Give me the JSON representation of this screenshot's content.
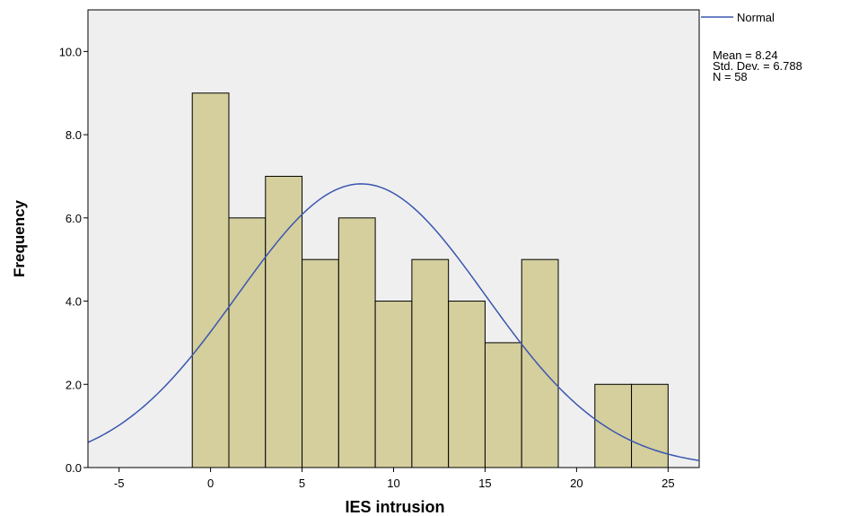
{
  "chart_data": {
    "type": "bar",
    "subtype": "histogram",
    "xlabel": "IES intrusion",
    "ylabel": "Frequency",
    "xlim": [
      -6.7,
      26.7
    ],
    "ylim": [
      0,
      11
    ],
    "x_ticks": [
      -5,
      0,
      5,
      10,
      15,
      20,
      25
    ],
    "x_tick_labels": [
      "-5",
      "0",
      "5",
      "10",
      "15",
      "20",
      "25"
    ],
    "y_ticks": [
      0,
      2,
      4,
      6,
      8,
      10
    ],
    "y_tick_labels": [
      "0.0",
      "2.0",
      "4.0",
      "6.0",
      "8.0",
      "10.0"
    ],
    "bin_width": 2,
    "bins": [
      {
        "center": 0,
        "value": 9
      },
      {
        "center": 2,
        "value": 6
      },
      {
        "center": 4,
        "value": 7
      },
      {
        "center": 6,
        "value": 5
      },
      {
        "center": 8,
        "value": 6
      },
      {
        "center": 10,
        "value": 4
      },
      {
        "center": 12,
        "value": 5
      },
      {
        "center": 14,
        "value": 4
      },
      {
        "center": 16,
        "value": 3
      },
      {
        "center": 18,
        "value": 5
      },
      {
        "center": 22,
        "value": 2
      },
      {
        "center": 24,
        "value": 2
      }
    ],
    "normal_curve": {
      "name": "Normal",
      "mean": 8.24,
      "sd": 6.788,
      "n": 58
    },
    "legend": {
      "series_label": "Normal",
      "stats": [
        "Mean = 8.24",
        "Std. Dev. = 6.788",
        "N = 58"
      ],
      "placement": "top-right"
    },
    "grid": false
  },
  "colors": {
    "plot_background": "#efefef",
    "bar_fill": "#d4cf9d",
    "bar_stroke": "#000000",
    "curve": "#3a56b0"
  }
}
